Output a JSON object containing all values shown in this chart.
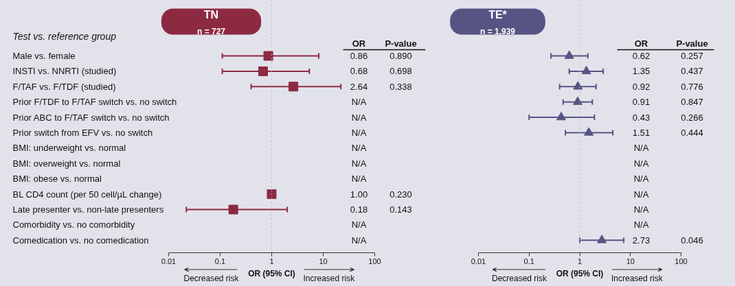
{
  "chart_data": [
    {
      "type": "scatter",
      "orientation": "horizontal",
      "title": "TN",
      "subtitle": "n = 727",
      "xlabel": "OR (95% CI)",
      "marker": "square",
      "log": "x",
      "xlim": [
        0.01,
        100
      ],
      "xticks": [
        0.01,
        0.1,
        1,
        10,
        100
      ],
      "categories": [
        "Male vs. female",
        "INSTI vs. NNRTI (studied)",
        "F/TAF vs. F/TDF (studied)",
        "Prior F/TDF to F/TAF switch vs. no switch",
        "Prior ABC to F/TAF switch vs. no switch",
        "Prior switch from EFV vs. no switch",
        "BMI: underweight vs. normal",
        "BMI: overweight vs. normal",
        "BMI: obese vs. normal",
        "BL CD4 count (per 50 cell/µL change)",
        "Late presenter vs. non-late presenters",
        "Comorbidity vs. no comorbidity",
        "Comedication vs. no comedication"
      ],
      "series": [
        {
          "color": "#8c2a42",
          "values": [
            0.86,
            0.68,
            2.64,
            null,
            null,
            null,
            null,
            null,
            null,
            1.0,
            0.18,
            null,
            null
          ],
          "errors": [
            [
              0.11,
              8.2
            ],
            [
              0.11,
              5.4
            ],
            [
              0.4,
              22
            ],
            null,
            null,
            null,
            null,
            null,
            null,
            null,
            [
              0.022,
              2.0
            ],
            null,
            null
          ]
        }
      ],
      "ref_lines": [
        {
          "axis": "x",
          "value": 1,
          "line_style": "dotted",
          "color": "#b4b4c0"
        }
      ],
      "annotations": [
        "Test vs. reference group",
        "OR",
        "P-value",
        "0.86",
        "0.68",
        "2.64",
        "N/A",
        "N/A",
        "N/A",
        "N/A",
        "N/A",
        "N/A",
        "1.00",
        "0.18",
        "N/A",
        "N/A",
        "0.890",
        "0.698",
        "0.338",
        "0.230",
        "0.143",
        "Decreased risk",
        "Increased risk"
      ]
    },
    {
      "type": "scatter",
      "orientation": "horizontal",
      "title": "TE*",
      "subtitle": "n = 1,939",
      "xlabel": "OR (95% CI)",
      "marker": "triangle",
      "log": "x",
      "xlim": [
        0.01,
        100
      ],
      "xticks": [
        0.01,
        0.1,
        1,
        10,
        100
      ],
      "categories": [
        null,
        null,
        null,
        null,
        null,
        null,
        null,
        null,
        null,
        null,
        null,
        null,
        null
      ],
      "series": [
        {
          "color": "#575383",
          "values": [
            0.62,
            1.35,
            0.92,
            0.91,
            0.43,
            1.51,
            null,
            null,
            null,
            null,
            null,
            null,
            2.73
          ],
          "errors": [
            [
              0.27,
              1.45
            ],
            [
              0.62,
              2.9
            ],
            [
              0.4,
              2.1
            ],
            [
              0.47,
              1.77
            ],
            [
              0.1,
              1.95
            ],
            [
              0.52,
              4.5
            ],
            null,
            null,
            null,
            null,
            null,
            null,
            [
              1.0,
              7.4
            ]
          ]
        }
      ],
      "ref_lines": [
        {
          "axis": "x",
          "value": 1,
          "line_style": "dotted",
          "color": "#b4b4c0"
        }
      ],
      "annotations": [
        "OR",
        "P-value",
        "0.62",
        "1.35",
        "0.92",
        "0.91",
        "0.43",
        "1.51",
        "N/A",
        "N/A",
        "N/A",
        "N/A",
        "N/A",
        "N/A",
        "2.73",
        "0.257",
        "0.437",
        "0.776",
        "0.847",
        "0.266",
        "0.444",
        "0.046",
        "Decreased risk",
        "Increased risk"
      ]
    }
  ]
}
